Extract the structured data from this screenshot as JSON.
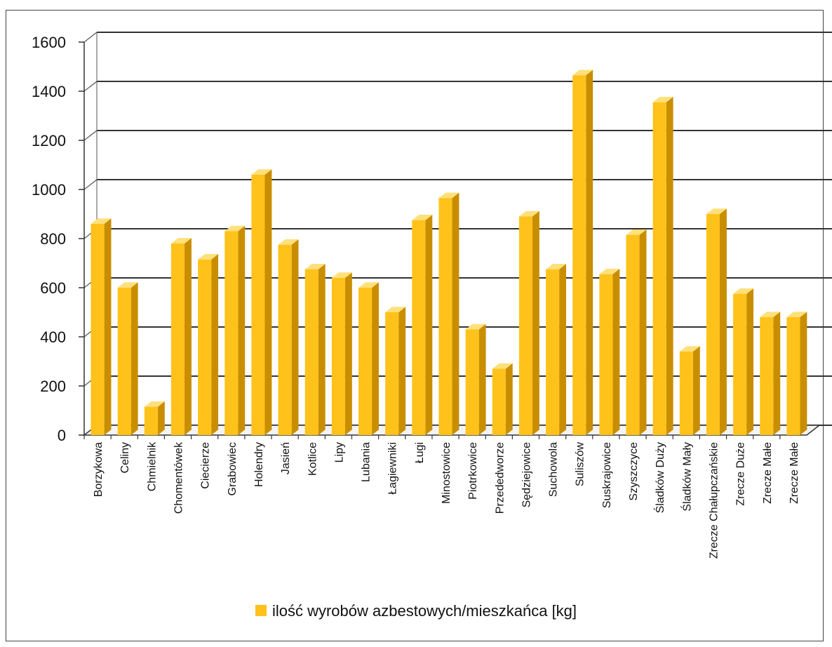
{
  "chart_data": {
    "type": "bar",
    "title": "",
    "xlabel": "",
    "ylabel": "",
    "ylim": [
      0,
      1600
    ],
    "yticks": [
      0,
      200,
      400,
      600,
      800,
      1000,
      1200,
      1400,
      1600
    ],
    "grid": true,
    "legend_position": "bottom",
    "bar_color": "#FFC21A",
    "categories": [
      "Borzykowa",
      "Celiny",
      "Chmielnik",
      "Chomentówek",
      "Ciecierze",
      "Grabowiec",
      "Holendry",
      "Jasień",
      "Kotlice",
      "Lipy",
      "Lubania",
      "Łagiewniki",
      "Ługi",
      "Minostowice",
      "Piotrkowice",
      "Przededworze",
      "Sędziejowice",
      "Suchowola",
      "Suliszów",
      "Suskrajowice",
      "Szyszczyce",
      "Śladków Duży",
      "Śladków Mały",
      "Zrecze Chałupczańskie",
      "Zrecze Duże",
      "Zrecze Małe",
      "Zrecze Małe"
    ],
    "series": [
      {
        "name": "ilość wyrobów azbestowych/mieszkańca [kg]",
        "values": [
          860,
          600,
          115,
          780,
          715,
          830,
          1060,
          775,
          675,
          640,
          600,
          500,
          875,
          965,
          430,
          270,
          890,
          675,
          1465,
          655,
          815,
          1355,
          340,
          900,
          575,
          480,
          480
        ]
      }
    ]
  }
}
